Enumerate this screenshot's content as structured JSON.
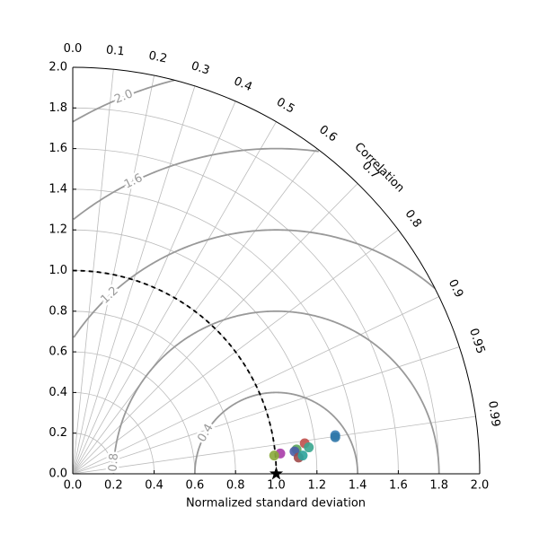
{
  "chart_data": {
    "type": "taylor",
    "xlabel": "Normalized standard deviation",
    "corr_label": "Correlation",
    "xlim": [
      0,
      2
    ],
    "ylim": [
      0,
      2
    ],
    "xticks": [
      {
        "value": 0,
        "label": "0.0"
      },
      0.2,
      0.4,
      0.6,
      0.8,
      {
        "value": 1,
        "label": "1.0"
      },
      1.2,
      1.4,
      1.6,
      1.8,
      {
        "value": 2,
        "label": "2.0"
      }
    ],
    "yticks": [
      {
        "value": 0,
        "label": "0.0"
      },
      0.2,
      0.4,
      0.6,
      0.8,
      {
        "value": 1,
        "label": "1.0"
      },
      1.2,
      1.4,
      1.6,
      1.8,
      {
        "value": 2,
        "label": "2.0"
      }
    ],
    "corr_ticks": [
      {
        "value": 0,
        "label": "0.0"
      },
      0.1,
      0.2,
      0.3,
      0.4,
      0.5,
      0.6,
      0.7,
      0.8,
      0.9,
      0.95,
      0.99
    ],
    "rms_contours": [
      0.4,
      0.8,
      1.2,
      1.6,
      {
        "value": 2,
        "label": "2.0"
      }
    ],
    "reference_std": 1,
    "grid": true,
    "x": [
      1.29,
      1.29,
      1.14,
      1.16,
      1.1,
      1.09,
      1.02,
      0.99,
      1.11,
      1.13
    ],
    "y": [
      0.19,
      0.18,
      0.15,
      0.13,
      0.12,
      0.11,
      0.1,
      0.09,
      0.08,
      0.09
    ],
    "colors": [
      "#3b7fb6",
      "#2f77a8",
      "#c0504d",
      "#3aa68f",
      "#5aa55a",
      "#4a5ea8",
      "#a83ca8",
      "#8aaa3a",
      "#a04a4a",
      "#2ba39b"
    ]
  }
}
